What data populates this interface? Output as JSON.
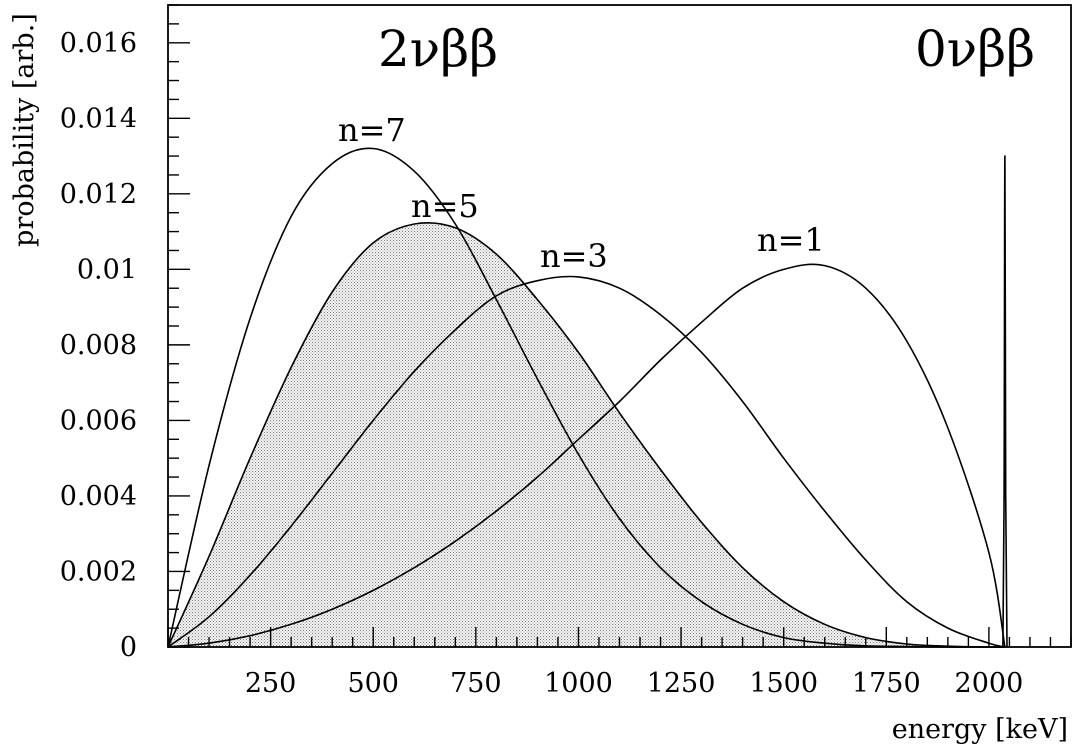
{
  "chart_data": {
    "type": "line",
    "xlabel": "energy [keV]",
    "ylabel": "probability [arb.]",
    "xlim": [
      0,
      2200
    ],
    "ylim": [
      0,
      0.017
    ],
    "x_ticks": [
      250,
      500,
      750,
      1000,
      1250,
      1500,
      1750,
      2000
    ],
    "x_tick_labels": [
      "250",
      "500",
      "750",
      "1000",
      "1250",
      "1500",
      "1750",
      "2000"
    ],
    "y_ticks": [
      0,
      0.002,
      0.004,
      0.006,
      0.008,
      0.01,
      0.012,
      0.014,
      0.016
    ],
    "y_tick_labels": [
      "0",
      "0.002",
      "0.004",
      "0.006",
      "0.008",
      "0.01",
      "0.012",
      "0.014",
      "0.016"
    ],
    "grid": false,
    "annotations": {
      "two_nu": "2νββ",
      "zero_nu": "0νββ"
    },
    "series": [
      {
        "name": "n=7",
        "x": [
          0,
          100,
          200,
          300,
          400,
          500,
          600,
          700,
          800,
          900,
          1000,
          1100,
          1200,
          1300,
          1400,
          1500,
          1600,
          1700,
          1800,
          1900,
          2000,
          2039
        ],
        "y": [
          0,
          0.0048,
          0.0087,
          0.0114,
          0.0128,
          0.0132,
          0.0126,
          0.0112,
          0.0092,
          0.0071,
          0.0051,
          0.0034,
          0.0021,
          0.0012,
          0.0006,
          0.00025,
          0.0001,
          3e-05,
          1e-05,
          0,
          0,
          0
        ]
      },
      {
        "name": "n=5",
        "x": [
          0,
          100,
          200,
          300,
          400,
          500,
          600,
          700,
          800,
          900,
          1000,
          1100,
          1200,
          1300,
          1400,
          1500,
          1600,
          1700,
          1800,
          1900,
          2000,
          2039
        ],
        "y": [
          0,
          0.0024,
          0.005,
          0.0074,
          0.0094,
          0.0107,
          0.0112,
          0.0111,
          0.0104,
          0.0092,
          0.0078,
          0.0062,
          0.0047,
          0.0033,
          0.0021,
          0.0012,
          0.0006,
          0.00025,
          8e-05,
          2e-05,
          0,
          0
        ]
      },
      {
        "name": "n=3",
        "x": [
          0,
          100,
          200,
          300,
          400,
          500,
          600,
          700,
          800,
          900,
          1000,
          1100,
          1200,
          1300,
          1400,
          1500,
          1600,
          1700,
          1800,
          1900,
          2000,
          2039
        ],
        "y": [
          0,
          0.0008,
          0.0019,
          0.0032,
          0.0046,
          0.006,
          0.0073,
          0.0084,
          0.0093,
          0.0097,
          0.0098,
          0.0095,
          0.0088,
          0.0078,
          0.0065,
          0.005,
          0.0036,
          0.0023,
          0.0012,
          0.0005,
          0.0001,
          0
        ]
      },
      {
        "name": "n=1",
        "x": [
          0,
          100,
          200,
          300,
          400,
          500,
          600,
          700,
          800,
          900,
          1000,
          1100,
          1200,
          1300,
          1400,
          1500,
          1600,
          1700,
          1800,
          1900,
          2000,
          2039
        ],
        "y": [
          0,
          0.0001,
          0.0003,
          0.0006,
          0.001,
          0.0015,
          0.0021,
          0.0028,
          0.0036,
          0.0045,
          0.0055,
          0.0065,
          0.0076,
          0.0086,
          0.0095,
          0.01,
          0.0101,
          0.0095,
          0.0081,
          0.0058,
          0.0025,
          0
        ]
      },
      {
        "name": "0νββ",
        "x": [
          2034,
          2037,
          2039,
          2041,
          2044
        ],
        "y": [
          0,
          0.004,
          0.013,
          0.004,
          0
        ]
      }
    ]
  }
}
